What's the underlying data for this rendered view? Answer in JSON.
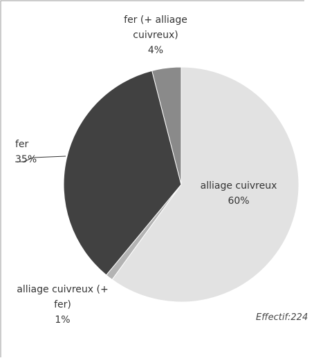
{
  "chart_data": {
    "type": "pie",
    "categories": [
      "alliage cuivreux",
      "alliage cuivreux (+ fer)",
      "fer",
      "fer (+ alliage cuivreux)"
    ],
    "values": [
      60,
      1,
      35,
      4
    ],
    "value_labels": [
      "60%",
      "1%",
      "35%",
      "4%"
    ],
    "colors": [
      "#e2e2e2",
      "#b3b3b3",
      "#414141",
      "#8a8a8a"
    ],
    "note": "Effectif:224"
  }
}
